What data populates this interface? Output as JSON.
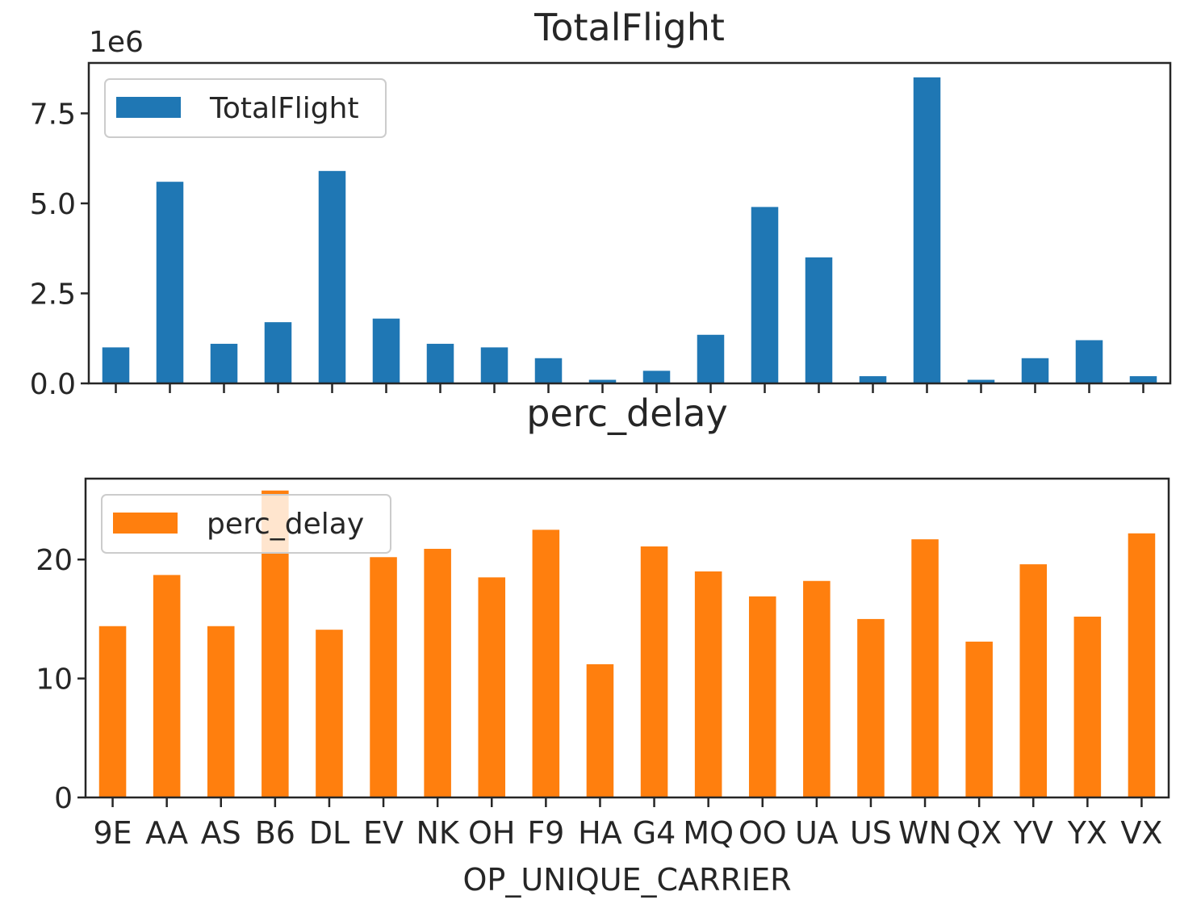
{
  "chart_data": [
    {
      "type": "bar",
      "title": "TotalFlight",
      "offset_label": "1e6",
      "xlabel": "",
      "ylabel": "",
      "ylim": [
        0,
        8.9
      ],
      "yticks": [
        0.0,
        2.5,
        5.0,
        7.5
      ],
      "ytick_labels": [
        "0.0",
        "2.5",
        "5.0",
        "7.5"
      ],
      "grid": false,
      "legend": "top-left",
      "categories": [
        "9E",
        "AA",
        "AS",
        "B6",
        "DL",
        "EV",
        "NK",
        "OH",
        "F9",
        "HA",
        "G4",
        "MQ",
        "OO",
        "UA",
        "US",
        "WN",
        "QX",
        "YV",
        "YX",
        "VX"
      ],
      "series": [
        {
          "name": "TotalFlight",
          "color": "#1f77b4",
          "values": [
            1.0,
            5.6,
            1.1,
            1.7,
            5.9,
            1.8,
            1.1,
            1.0,
            0.7,
            0.1,
            0.35,
            1.35,
            4.9,
            3.5,
            0.2,
            8.5,
            0.1,
            0.7,
            1.2,
            0.2
          ]
        }
      ]
    },
    {
      "type": "bar",
      "title": "perc_delay",
      "xlabel": "OP_UNIQUE_CARRIER",
      "ylabel": "",
      "ylim": [
        0,
        26.8
      ],
      "yticks": [
        0,
        10,
        20
      ],
      "ytick_labels": [
        "0",
        "10",
        "20"
      ],
      "grid": false,
      "legend": "top-left",
      "categories": [
        "9E",
        "AA",
        "AS",
        "B6",
        "DL",
        "EV",
        "NK",
        "OH",
        "F9",
        "HA",
        "G4",
        "MQ",
        "OO",
        "UA",
        "US",
        "WN",
        "QX",
        "YV",
        "YX",
        "VX"
      ],
      "series": [
        {
          "name": "perc_delay",
          "color": "#ff7f0e",
          "values": [
            14.4,
            18.7,
            14.4,
            25.8,
            14.1,
            20.2,
            20.9,
            18.5,
            22.5,
            11.2,
            21.1,
            19.0,
            16.9,
            18.2,
            15.0,
            21.7,
            13.1,
            19.6,
            15.2,
            22.2
          ]
        }
      ]
    }
  ]
}
